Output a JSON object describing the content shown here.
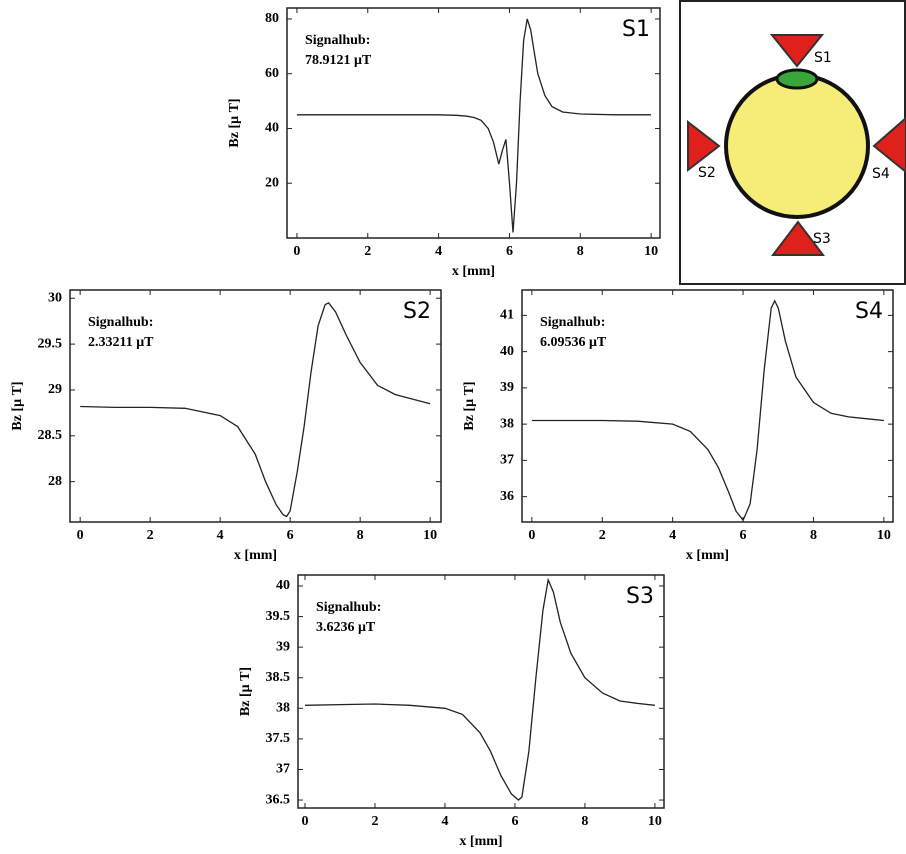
{
  "chart_data": [
    {
      "type": "line",
      "title": "S1",
      "annotation": "Signalhub:",
      "annotation_value": "78.9121 μT",
      "xlabel": "x [mm]",
      "ylabel": "Bz [μ T]",
      "x": [
        0,
        1,
        2,
        3,
        4,
        4.5,
        4.8,
        5,
        5.2,
        5.4,
        5.55,
        5.7,
        5.8,
        5.9,
        6.0,
        6.1,
        6.2,
        6.3,
        6.4,
        6.5,
        6.6,
        6.7,
        6.8,
        7.0,
        7.2,
        7.5,
        8,
        9,
        10
      ],
      "values": [
        45,
        45,
        45,
        45,
        45,
        44.8,
        44.5,
        44,
        43,
        40,
        35,
        27,
        32,
        36,
        20,
        2,
        20,
        50,
        72,
        80,
        76,
        68,
        60,
        52,
        48,
        46,
        45.3,
        45,
        45
      ],
      "color": "#222222",
      "xlim": [
        -0.28,
        10.25
      ],
      "xticks": [
        0,
        2,
        4,
        6,
        8,
        10
      ],
      "ylim": [
        0,
        84
      ],
      "yticks": [
        20,
        40,
        60,
        80
      ]
    },
    {
      "type": "line",
      "title": "S2",
      "annotation": "Signalhub:",
      "annotation_value": "2.33211 μT",
      "xlabel": "x [mm]",
      "ylabel": "Bz [μ T]",
      "x": [
        0,
        1,
        2,
        3,
        4,
        4.5,
        5,
        5.3,
        5.6,
        5.8,
        5.9,
        6.0,
        6.2,
        6.4,
        6.6,
        6.8,
        7.0,
        7.1,
        7.3,
        7.6,
        8,
        8.5,
        9,
        9.5,
        10
      ],
      "values": [
        28.82,
        28.81,
        28.81,
        28.8,
        28.72,
        28.6,
        28.3,
        28.0,
        27.75,
        27.64,
        27.62,
        27.68,
        28.1,
        28.6,
        29.2,
        29.7,
        29.93,
        29.95,
        29.85,
        29.6,
        29.3,
        29.05,
        28.95,
        28.9,
        28.85
      ],
      "color": "#222222",
      "xlim": [
        -0.29,
        10.31
      ],
      "xticks": [
        0,
        2,
        4,
        6,
        8,
        10
      ],
      "ylim": [
        27.56,
        30.09
      ],
      "yticks": [
        28,
        28.5,
        29,
        29.5,
        30
      ]
    },
    {
      "type": "line",
      "title": "S3",
      "annotation": "Signalhub:",
      "annotation_value": "3.6236 μT",
      "xlabel": "x [mm]",
      "ylabel": "Bz [μ T]",
      "x": [
        0,
        1,
        2,
        3,
        4,
        4.5,
        5,
        5.3,
        5.6,
        5.9,
        6.1,
        6.2,
        6.4,
        6.6,
        6.8,
        6.95,
        7.1,
        7.3,
        7.6,
        8,
        8.5,
        9,
        9.5,
        10
      ],
      "values": [
        38.05,
        38.06,
        38.07,
        38.05,
        38.0,
        37.9,
        37.6,
        37.3,
        36.9,
        36.6,
        36.5,
        36.55,
        37.3,
        38.5,
        39.6,
        40.1,
        39.9,
        39.4,
        38.9,
        38.5,
        38.25,
        38.12,
        38.08,
        38.05
      ],
      "color": "#222222",
      "xlim": [
        -0.2,
        10.26
      ],
      "xticks": [
        0,
        2,
        4,
        6,
        8,
        10
      ],
      "ylim": [
        36.37,
        40.18
      ],
      "yticks": [
        36.5,
        37,
        37.5,
        38,
        38.5,
        39,
        39.5,
        40
      ]
    },
    {
      "type": "line",
      "title": "S4",
      "annotation": "Signalhub:",
      "annotation_value": "6.09536 μT",
      "xlabel": "x [mm]",
      "ylabel": "Bz [μ T]",
      "x": [
        0,
        1,
        2,
        3,
        4,
        4.5,
        5,
        5.3,
        5.6,
        5.8,
        6.0,
        6.2,
        6.4,
        6.6,
        6.8,
        6.9,
        7.0,
        7.2,
        7.5,
        8,
        8.5,
        9,
        9.5,
        10
      ],
      "values": [
        38.1,
        38.1,
        38.1,
        38.08,
        38.0,
        37.8,
        37.3,
        36.8,
        36.1,
        35.6,
        35.35,
        35.8,
        37.3,
        39.5,
        41.2,
        41.4,
        41.2,
        40.3,
        39.3,
        38.6,
        38.3,
        38.2,
        38.15,
        38.1
      ],
      "color": "#222222",
      "xlim": [
        -0.28,
        10.26
      ],
      "xticks": [
        0,
        2,
        4,
        6,
        8,
        10
      ],
      "ylim": [
        35.3,
        41.7
      ],
      "yticks": [
        36,
        37,
        38,
        39,
        40,
        41
      ]
    }
  ],
  "diagram": {
    "labels": [
      "S1",
      "S2",
      "S3",
      "S4"
    ]
  }
}
